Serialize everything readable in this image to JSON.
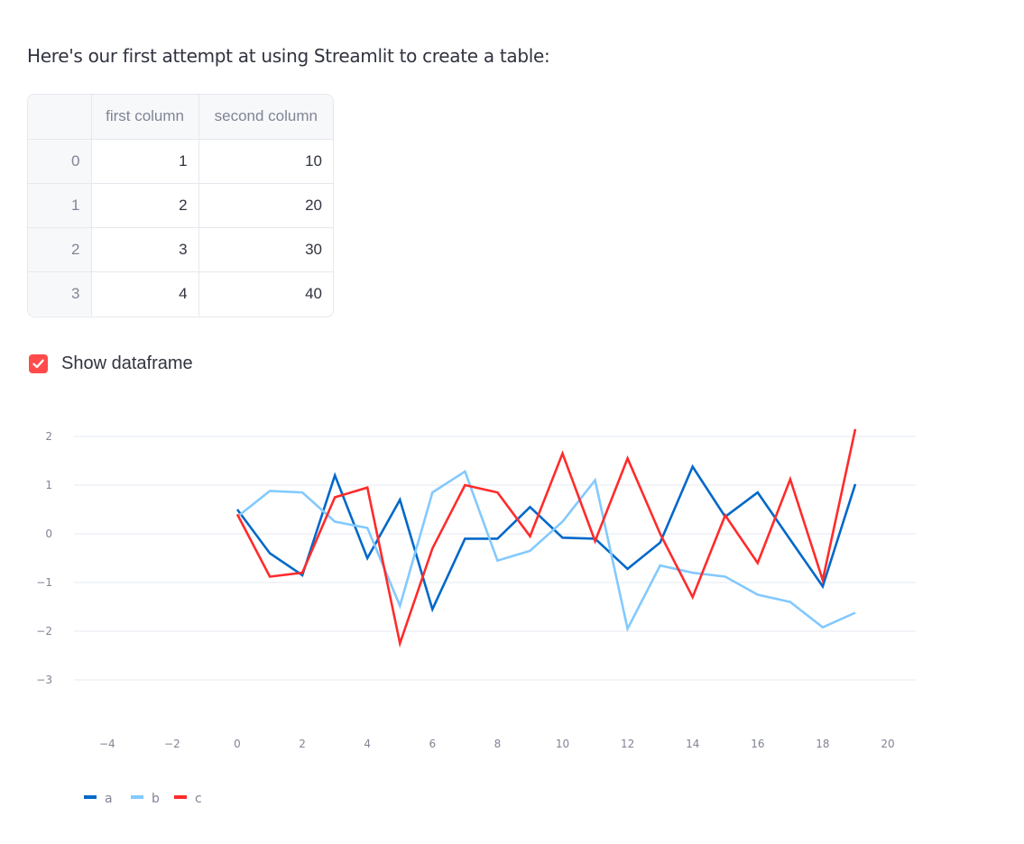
{
  "intro_text": "Here's our first attempt at using Streamlit to create a table:",
  "table": {
    "columns": [
      "",
      "first column",
      "second column"
    ],
    "rows": [
      {
        "index": "0",
        "first": "1",
        "second": "10"
      },
      {
        "index": "1",
        "first": "2",
        "second": "20"
      },
      {
        "index": "2",
        "first": "3",
        "second": "30"
      },
      {
        "index": "3",
        "first": "4",
        "second": "40"
      }
    ]
  },
  "checkbox": {
    "label": "Show dataframe",
    "checked": true,
    "color": "#ff4b4b"
  },
  "chart_data": {
    "type": "line",
    "x": [
      0,
      1,
      2,
      3,
      4,
      5,
      6,
      7,
      8,
      9,
      10,
      11,
      12,
      13,
      14,
      15,
      16,
      17,
      18,
      19
    ],
    "xlim": [
      -5,
      21
    ],
    "ylim": [
      -3.5,
      2.3
    ],
    "xticks": [
      "−4",
      "−2",
      "0",
      "2",
      "4",
      "6",
      "8",
      "10",
      "12",
      "14",
      "16",
      "18",
      "20"
    ],
    "xtick_values": [
      -4,
      -2,
      0,
      2,
      4,
      6,
      8,
      10,
      12,
      14,
      16,
      18,
      20
    ],
    "yticks": [
      "2",
      "1",
      "0",
      "−1",
      "−2",
      "−3"
    ],
    "ytick_values": [
      2,
      1,
      0,
      -1,
      -2,
      -3
    ],
    "grid": true,
    "legend_position": "bottom-left",
    "series": [
      {
        "name": "a",
        "color": "#0068c9",
        "values": [
          0.5,
          -0.4,
          -0.85,
          1.2,
          -0.5,
          0.7,
          -1.55,
          -0.1,
          -0.1,
          0.55,
          -0.08,
          -0.1,
          -0.72,
          -0.18,
          1.38,
          0.35,
          0.85,
          -0.12,
          -1.08,
          1.02
        ]
      },
      {
        "name": "b",
        "color": "#83c9ff",
        "values": [
          0.35,
          0.88,
          0.85,
          0.25,
          0.12,
          -1.48,
          0.85,
          1.28,
          -0.55,
          -0.35,
          0.25,
          1.1,
          -1.95,
          -0.65,
          -0.8,
          -0.88,
          -1.25,
          -1.4,
          -1.92,
          -1.62
        ]
      },
      {
        "name": "c",
        "color": "#ff2b2b",
        "values": [
          0.4,
          -0.88,
          -0.8,
          0.75,
          0.95,
          -2.25,
          -0.3,
          1.0,
          0.85,
          -0.05,
          1.65,
          -0.15,
          1.55,
          0.0,
          -1.3,
          0.38,
          -0.6,
          1.12,
          -0.95,
          2.15
        ]
      }
    ]
  }
}
